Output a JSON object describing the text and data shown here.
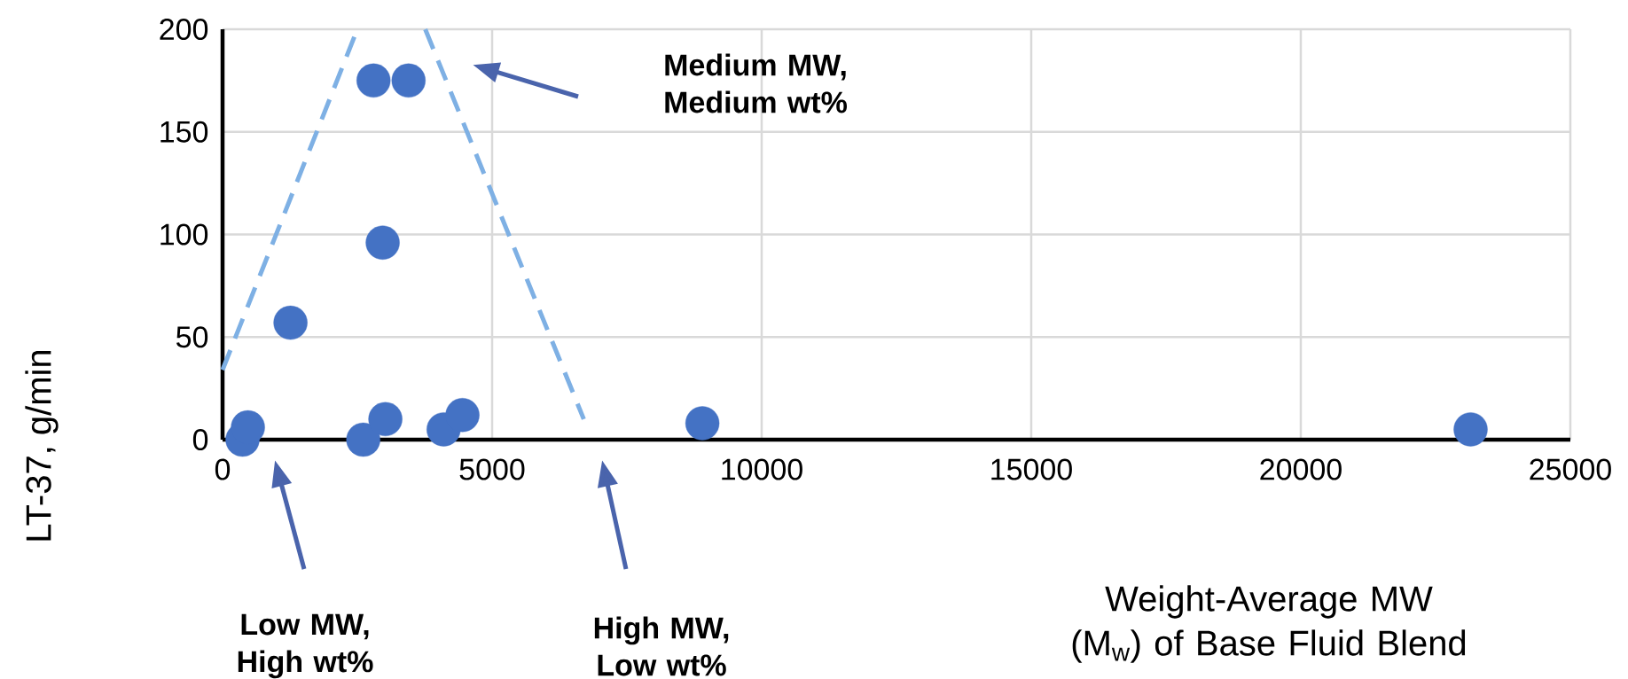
{
  "chart_data": {
    "type": "scatter",
    "xlabel": "Weight-Average MW (M$_{w}$) of Base Fluid Blend",
    "ylabel": "LT-37, g/min",
    "series": [
      {
        "color": "#4472c4",
        "marker": "circle",
        "x": [
          370,
          470,
          1260,
          2610,
          2800,
          2970,
          3020,
          3450,
          4100,
          4450,
          8900,
          23150
        ],
        "values": [
          0,
          6,
          57,
          0,
          175,
          96,
          10,
          175,
          5,
          12,
          8,
          5
        ]
      },
      {
        "type": "line",
        "color": "#7eb0e4",
        "line_style": "dashed",
        "marker": "none",
        "x": [
          0,
          2500
        ],
        "values": [
          34,
          200
        ]
      },
      {
        "type": "line",
        "color": "#7eb0e4",
        "line_style": "dashed",
        "marker": "none",
        "x": [
          3760,
          6700
        ],
        "values": [
          200,
          10
        ]
      }
    ],
    "xlim": [
      0,
      25000
    ],
    "ylim": [
      0,
      200
    ],
    "xticks": [
      0,
      5000,
      10000,
      15000,
      20000,
      25000
    ],
    "yticks": [
      0,
      50,
      100,
      150,
      200
    ],
    "grid": true,
    "annotations": [
      "Medium MW, Medium wt%",
      "Low MW, High wt%",
      "High MW, Low wt%"
    ]
  }
}
